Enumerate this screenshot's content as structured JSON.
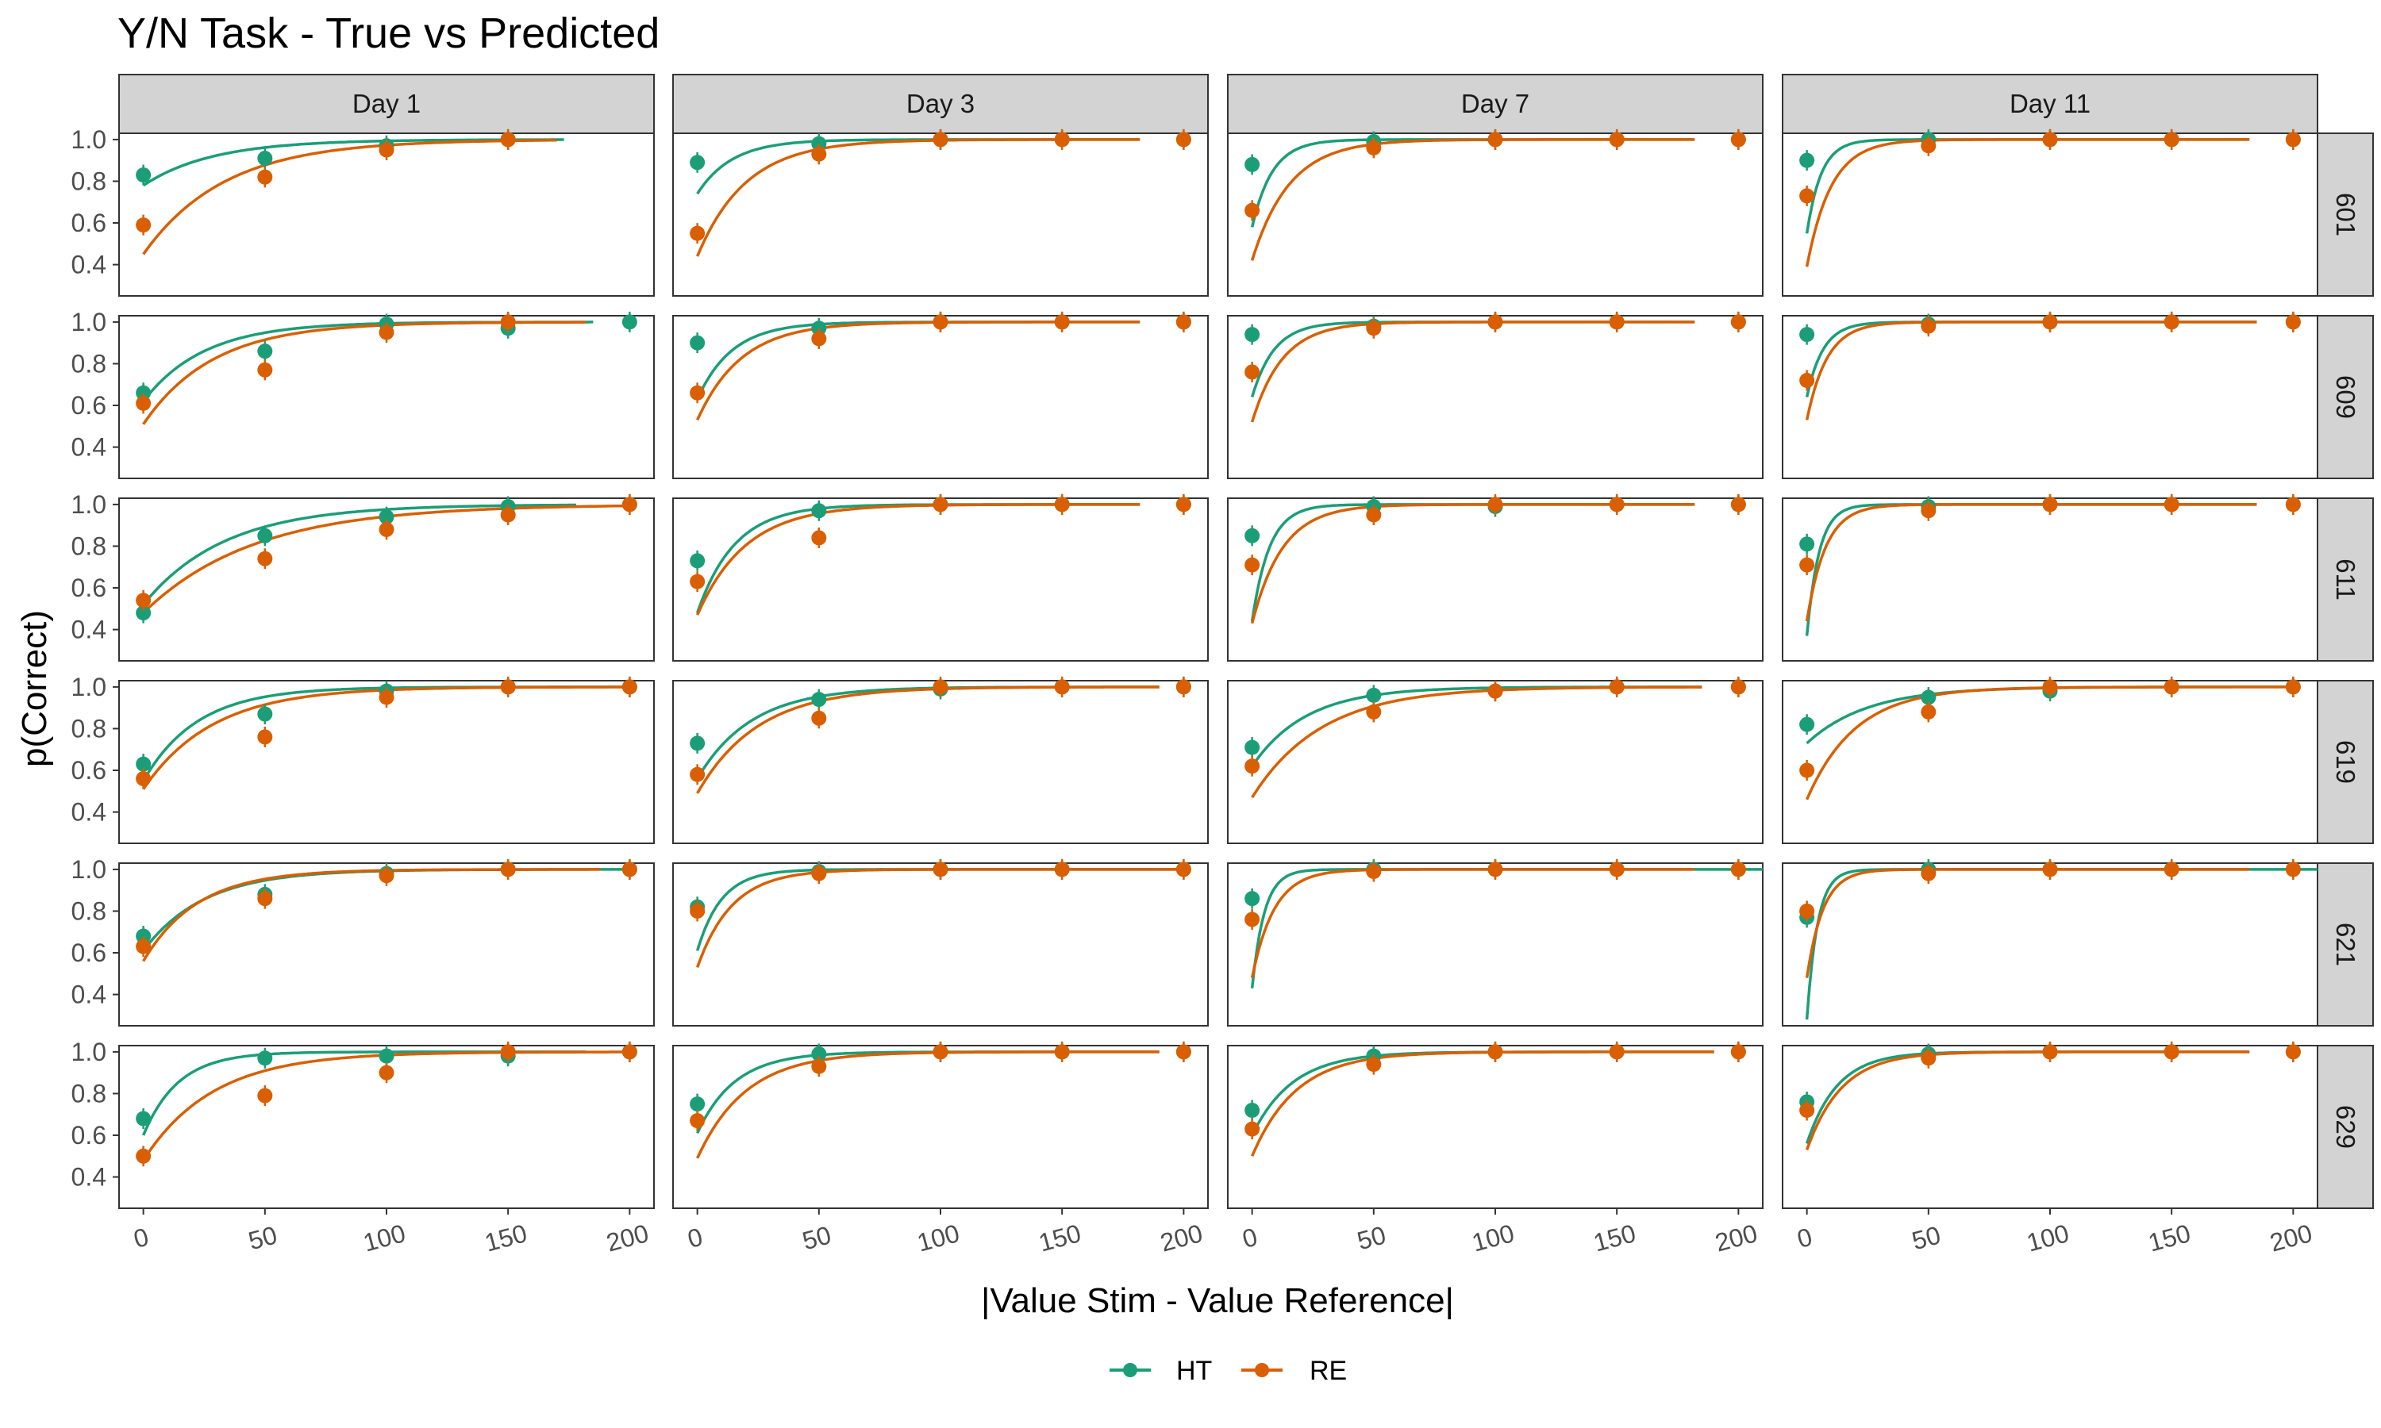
{
  "chart_data": {
    "type": "scatter",
    "title": "Y/N Task - True vs Predicted",
    "xlabel": "|Value Stim - Value Reference|",
    "ylabel": "p(Correct)",
    "xlim": [
      -10,
      210
    ],
    "ylim": [
      0.25,
      1.03
    ],
    "x_ticks": [
      "0",
      "50",
      "100",
      "150",
      "200"
    ],
    "y_ticks": [
      "0.4",
      "0.6",
      "0.8",
      "1.0"
    ],
    "column_facets": [
      "Day 1",
      "Day 3",
      "Day 7",
      "Day 11"
    ],
    "row_facets": [
      "601",
      "609",
      "611",
      "619",
      "621",
      "629"
    ],
    "legend": {
      "position": "bottom",
      "entries": [
        "HT",
        "RE"
      ]
    },
    "colors": {
      "HT": "#1b9e77",
      "RE": "#d95f02",
      "strip_fill": "#d3d3d3",
      "panel_border": "#333333"
    },
    "x": [
      0,
      50,
      100,
      150,
      200
    ],
    "panels": [
      {
        "row": "601",
        "col": "Day 1",
        "HT_points": [
          0.83,
          0.91,
          0.97,
          1.0,
          null
        ],
        "RE_points": [
          0.59,
          0.82,
          0.95,
          1.0,
          null
        ],
        "HT_fit": {
          "start": 0.78,
          "rate": 0.035,
          "end": 173
        },
        "RE_fit": {
          "start": 0.45,
          "rate": 0.03,
          "end": 170
        }
      },
      {
        "row": "601",
        "col": "Day 3",
        "HT_points": [
          0.89,
          0.98,
          1.0,
          1.0,
          1.0
        ],
        "RE_points": [
          0.55,
          0.93,
          1.0,
          1.0,
          1.0
        ],
        "HT_fit": {
          "start": 0.74,
          "rate": 0.07,
          "end": 182
        },
        "RE_fit": {
          "start": 0.44,
          "rate": 0.05,
          "end": 182
        }
      },
      {
        "row": "601",
        "col": "Day 7",
        "HT_points": [
          0.88,
          0.99,
          1.0,
          1.0,
          1.0
        ],
        "RE_points": [
          0.66,
          0.96,
          1.0,
          1.0,
          1.0
        ],
        "HT_fit": {
          "start": 0.58,
          "rate": 0.12,
          "end": 182
        },
        "RE_fit": {
          "start": 0.42,
          "rate": 0.065,
          "end": 182
        }
      },
      {
        "row": "601",
        "col": "Day 11",
        "HT_points": [
          0.9,
          1.0,
          1.0,
          1.0,
          1.0
        ],
        "RE_points": [
          0.73,
          0.97,
          1.0,
          1.0,
          1.0
        ],
        "HT_fit": {
          "start": 0.55,
          "rate": 0.17,
          "end": 182
        },
        "RE_fit": {
          "start": 0.39,
          "rate": 0.1,
          "end": 182
        }
      },
      {
        "row": "609",
        "col": "Day 1",
        "HT_points": [
          0.66,
          0.86,
          0.99,
          0.97,
          1.0
        ],
        "RE_points": [
          0.61,
          0.77,
          0.95,
          1.0,
          null
        ],
        "HT_fit": {
          "start": 0.62,
          "rate": 0.04,
          "end": 185
        },
        "RE_fit": {
          "start": 0.51,
          "rate": 0.035,
          "end": 182
        }
      },
      {
        "row": "609",
        "col": "Day 3",
        "HT_points": [
          0.9,
          0.97,
          1.0,
          1.0,
          1.0
        ],
        "RE_points": [
          0.66,
          0.92,
          1.0,
          1.0,
          1.0
        ],
        "HT_fit": {
          "start": 0.63,
          "rate": 0.07,
          "end": 182
        },
        "RE_fit": {
          "start": 0.53,
          "rate": 0.055,
          "end": 182
        }
      },
      {
        "row": "609",
        "col": "Day 7",
        "HT_points": [
          0.94,
          0.98,
          1.0,
          1.0,
          1.0
        ],
        "RE_points": [
          0.76,
          0.97,
          1.0,
          1.0,
          1.0
        ],
        "HT_fit": {
          "start": 0.64,
          "rate": 0.11,
          "end": 182
        },
        "RE_fit": {
          "start": 0.52,
          "rate": 0.08,
          "end": 182
        }
      },
      {
        "row": "609",
        "col": "Day 11",
        "HT_points": [
          0.94,
          0.99,
          1.0,
          1.0,
          1.0
        ],
        "RE_points": [
          0.72,
          0.98,
          1.0,
          1.0,
          1.0
        ],
        "HT_fit": {
          "start": 0.64,
          "rate": 0.15,
          "end": 185
        },
        "RE_fit": {
          "start": 0.53,
          "rate": 0.12,
          "end": 185
        }
      },
      {
        "row": "611",
        "col": "Day 1",
        "HT_points": [
          0.48,
          0.85,
          0.94,
          0.99,
          1.0
        ],
        "RE_points": [
          0.54,
          0.74,
          0.88,
          0.95,
          1.0
        ],
        "HT_fit": {
          "start": 0.52,
          "rate": 0.03,
          "end": 178
        },
        "RE_fit": {
          "start": 0.48,
          "rate": 0.022,
          "end": 200
        }
      },
      {
        "row": "611",
        "col": "Day 3",
        "HT_points": [
          0.73,
          0.97,
          1.0,
          1.0,
          1.0
        ],
        "RE_points": [
          0.63,
          0.84,
          1.0,
          1.0,
          1.0
        ],
        "HT_fit": {
          "start": 0.48,
          "rate": 0.065,
          "end": 182
        },
        "RE_fit": {
          "start": 0.47,
          "rate": 0.05,
          "end": 182
        }
      },
      {
        "row": "611",
        "col": "Day 7",
        "HT_points": [
          0.85,
          0.99,
          0.99,
          1.0,
          1.0
        ],
        "RE_points": [
          0.71,
          0.95,
          1.0,
          1.0,
          1.0
        ],
        "HT_fit": {
          "start": 0.44,
          "rate": 0.14,
          "end": 182
        },
        "RE_fit": {
          "start": 0.43,
          "rate": 0.08,
          "end": 182
        }
      },
      {
        "row": "611",
        "col": "Day 11",
        "HT_points": [
          0.81,
          0.99,
          1.0,
          1.0,
          1.0
        ],
        "RE_points": [
          0.71,
          0.97,
          1.0,
          1.0,
          1.0
        ],
        "HT_fit": {
          "start": 0.37,
          "rate": 0.2,
          "end": 185
        },
        "RE_fit": {
          "start": 0.44,
          "rate": 0.13,
          "end": 185
        }
      },
      {
        "row": "619",
        "col": "Day 1",
        "HT_points": [
          0.63,
          0.87,
          0.98,
          1.0,
          1.0
        ],
        "RE_points": [
          0.56,
          0.76,
          0.95,
          1.0,
          1.0
        ],
        "HT_fit": {
          "start": 0.55,
          "rate": 0.045,
          "end": 200
        },
        "RE_fit": {
          "start": 0.51,
          "rate": 0.035,
          "end": 200
        }
      },
      {
        "row": "619",
        "col": "Day 3",
        "HT_points": [
          0.73,
          0.94,
          0.99,
          1.0,
          1.0
        ],
        "RE_points": [
          0.58,
          0.85,
          1.0,
          1.0,
          1.0
        ],
        "HT_fit": {
          "start": 0.56,
          "rate": 0.045,
          "end": 190
        },
        "RE_fit": {
          "start": 0.49,
          "rate": 0.04,
          "end": 190
        }
      },
      {
        "row": "619",
        "col": "Day 7",
        "HT_points": [
          0.71,
          0.96,
          0.98,
          1.0,
          1.0
        ],
        "RE_points": [
          0.62,
          0.88,
          0.98,
          1.0,
          1.0
        ],
        "HT_fit": {
          "start": 0.62,
          "rate": 0.045,
          "end": 185
        },
        "RE_fit": {
          "start": 0.47,
          "rate": 0.035,
          "end": 185
        }
      },
      {
        "row": "619",
        "col": "Day 11",
        "HT_points": [
          0.82,
          0.95,
          0.98,
          1.0,
          1.0
        ],
        "RE_points": [
          0.6,
          0.88,
          1.0,
          1.0,
          1.0
        ],
        "HT_fit": {
          "start": 0.73,
          "rate": 0.04,
          "end": 200
        },
        "RE_fit": {
          "start": 0.46,
          "rate": 0.05,
          "end": 200
        }
      },
      {
        "row": "621",
        "col": "Day 1",
        "HT_points": [
          0.68,
          0.88,
          0.98,
          1.0,
          1.0
        ],
        "RE_points": [
          0.63,
          0.86,
          0.97,
          1.0,
          1.0
        ],
        "HT_fit": {
          "start": 0.61,
          "rate": 0.04,
          "end": 200
        },
        "RE_fit": {
          "start": 0.56,
          "rate": 0.045,
          "end": 188
        }
      },
      {
        "row": "621",
        "col": "Day 3",
        "HT_points": [
          0.82,
          0.99,
          1.0,
          1.0,
          1.0
        ],
        "RE_points": [
          0.8,
          0.98,
          1.0,
          1.0,
          1.0
        ],
        "HT_fit": {
          "start": 0.61,
          "rate": 0.1,
          "end": 200
        },
        "RE_fit": {
          "start": 0.53,
          "rate": 0.07,
          "end": 200
        }
      },
      {
        "row": "621",
        "col": "Day 7",
        "HT_points": [
          0.86,
          1.0,
          1.0,
          1.0,
          1.0
        ],
        "RE_points": [
          0.76,
          0.99,
          1.0,
          1.0,
          1.0
        ],
        "HT_fit": {
          "start": 0.43,
          "rate": 0.2,
          "end": 210
        },
        "RE_fit": {
          "start": 0.48,
          "rate": 0.11,
          "end": 182
        }
      },
      {
        "row": "621",
        "col": "Day 11",
        "HT_points": [
          0.77,
          1.0,
          1.0,
          1.0,
          1.0
        ],
        "RE_points": [
          0.8,
          0.98,
          1.0,
          1.0,
          1.0
        ],
        "HT_fit": {
          "start": 0.28,
          "rate": 0.23,
          "end": 210
        },
        "RE_fit": {
          "start": 0.48,
          "rate": 0.15,
          "end": 182
        }
      },
      {
        "row": "629",
        "col": "Day 1",
        "HT_points": [
          0.68,
          0.97,
          0.98,
          0.98,
          1.0
        ],
        "RE_points": [
          0.5,
          0.79,
          0.9,
          1.0,
          1.0
        ],
        "HT_fit": {
          "start": 0.6,
          "rate": 0.07,
          "end": 182
        },
        "RE_fit": {
          "start": 0.48,
          "rate": 0.035,
          "end": 200
        }
      },
      {
        "row": "629",
        "col": "Day 3",
        "HT_points": [
          0.75,
          0.99,
          1.0,
          1.0,
          1.0
        ],
        "RE_points": [
          0.67,
          0.93,
          1.0,
          1.0,
          1.0
        ],
        "HT_fit": {
          "start": 0.61,
          "rate": 0.065,
          "end": 190
        },
        "RE_fit": {
          "start": 0.49,
          "rate": 0.05,
          "end": 190
        }
      },
      {
        "row": "629",
        "col": "Day 7",
        "HT_points": [
          0.72,
          0.98,
          1.0,
          1.0,
          1.0
        ],
        "RE_points": [
          0.63,
          0.94,
          1.0,
          1.0,
          1.0
        ],
        "HT_fit": {
          "start": 0.6,
          "rate": 0.06,
          "end": 190
        },
        "RE_fit": {
          "start": 0.5,
          "rate": 0.055,
          "end": 190
        }
      },
      {
        "row": "629",
        "col": "Day 11",
        "HT_points": [
          0.76,
          0.99,
          1.0,
          1.0,
          1.0
        ],
        "RE_points": [
          0.72,
          0.97,
          1.0,
          1.0,
          1.0
        ],
        "HT_fit": {
          "start": 0.56,
          "rate": 0.08,
          "end": 182
        },
        "RE_fit": {
          "start": 0.53,
          "rate": 0.07,
          "end": 182
        }
      }
    ]
  }
}
